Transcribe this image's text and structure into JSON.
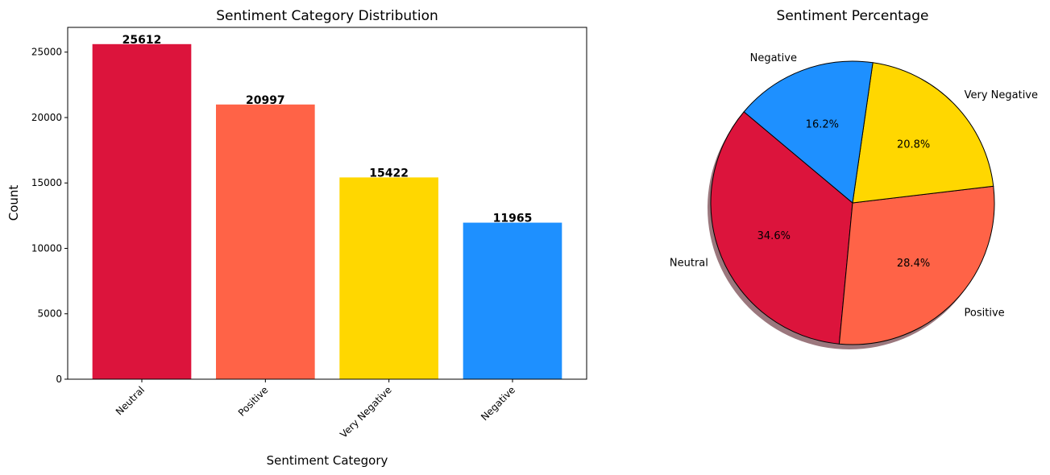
{
  "chart_data": [
    {
      "type": "bar",
      "title": "Sentiment Category Distribution",
      "xlabel": "Sentiment Category",
      "ylabel": "Count",
      "categories": [
        "Neutral",
        "Positive",
        "Very Negative",
        "Negative"
      ],
      "values": [
        25612,
        20997,
        15422,
        11965
      ],
      "data_labels": [
        "25612",
        "20997",
        "15422",
        "11965"
      ],
      "colors": [
        "#dc143c",
        "#ff6347",
        "#ffd700",
        "#1e90ff"
      ],
      "ylim": [
        0,
        26892
      ],
      "yticks": [
        0,
        5000,
        10000,
        15000,
        20000,
        25000
      ],
      "ytick_labels": [
        "0",
        "5000",
        "10000",
        "15000",
        "20000",
        "25000"
      ],
      "grid": false
    },
    {
      "type": "pie",
      "title": "Sentiment Percentage",
      "labels": [
        "Neutral",
        "Positive",
        "Very Negative",
        "Negative"
      ],
      "values": [
        25612,
        20997,
        15422,
        11965
      ],
      "percent_labels": [
        "34.6%",
        "28.4%",
        "20.8%",
        "16.2%"
      ],
      "colors": [
        "#dc143c",
        "#ff6347",
        "#ffd700",
        "#1e90ff"
      ],
      "start_angle": 140,
      "shadow": true
    }
  ]
}
